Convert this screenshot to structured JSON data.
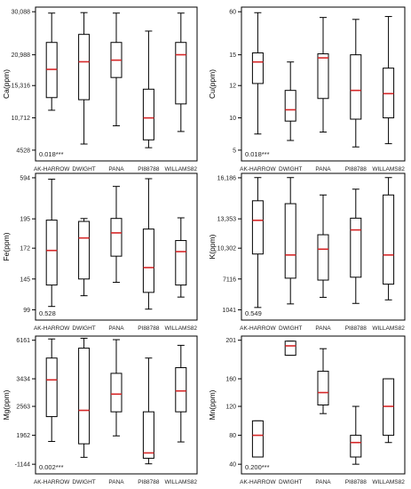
{
  "chart_data": [
    {
      "type": "box",
      "ylabel": "Ca(ppm)",
      "ylim": [
        4528,
        30088
      ],
      "yticks": [
        "30,088",
        "20,988",
        "15,316",
        "10,712",
        "4528"
      ],
      "ytick_values": [
        30088,
        20988,
        15316,
        10712,
        4528
      ],
      "categories": [
        "AK-HARROW",
        "DWIGHT",
        "PANA",
        "PI88788",
        "WILLAMS82"
      ],
      "boxes": [
        {
          "whisker_low": 11800,
          "q1": 13600,
          "median": 18300,
          "q3": 23600,
          "whisker_high": 29800
        },
        {
          "whisker_low": 5700,
          "q1": 13300,
          "median": 19700,
          "q3": 25300,
          "whisker_high": 29900
        },
        {
          "whisker_low": 9200,
          "q1": 16800,
          "median": 20000,
          "q3": 23600,
          "whisker_high": 29800
        },
        {
          "whisker_low": 5000,
          "q1": 6500,
          "median": 10700,
          "q3": 14800,
          "whisker_high": 26000
        },
        {
          "whisker_low": 8100,
          "q1": 12700,
          "median": 21000,
          "q3": 23600,
          "whisker_high": 29800
        }
      ],
      "annotation": "0.018***"
    },
    {
      "type": "box",
      "ylabel": "Cu(ppm)",
      "ylim": [
        5,
        60
      ],
      "yticks": [
        "60",
        "15",
        "12",
        "10",
        "5"
      ],
      "ytick_values": [
        60,
        15,
        12,
        10,
        5
      ],
      "categories": [
        "AK-HARROW",
        "DWIGHT",
        "PANA",
        "PI88788",
        "WILLAMS82"
      ],
      "boxes": [
        {
          "whisker_low": 7.5,
          "q1": 12.2,
          "median": 14.3,
          "q3": 17,
          "whisker_high": 59
        },
        {
          "whisker_low": 6.5,
          "q1": 9.5,
          "median": 10.5,
          "q3": 11.7,
          "whisker_high": 14.3
        },
        {
          "whisker_low": 7.8,
          "q1": 11.2,
          "median": 14.7,
          "q3": 16,
          "whisker_high": 54
        },
        {
          "whisker_low": 5.5,
          "q1": 9.8,
          "median": 11.7,
          "q3": 15,
          "whisker_high": 52
        },
        {
          "whisker_low": 6,
          "q1": 10,
          "median": 11.5,
          "q3": 13.7,
          "whisker_high": 55
        }
      ],
      "annotation": "0.018***"
    },
    {
      "type": "box",
      "ylabel": "Fe(ppm)",
      "ylim": [
        99,
        594
      ],
      "yticks": [
        "594",
        "195",
        "172",
        "145",
        "99"
      ],
      "ytick_values": [
        594,
        195,
        172,
        145,
        99
      ],
      "categories": [
        "AK-HARROW",
        "DWIGHT",
        "PANA",
        "PI88788",
        "WILLAMS82"
      ],
      "boxes": [
        {
          "whisker_low": 104,
          "q1": 136,
          "median": 170,
          "q3": 194,
          "whisker_high": 580
        },
        {
          "whisker_low": 120,
          "q1": 145,
          "median": 180,
          "q3": 193,
          "whisker_high": 198
        },
        {
          "whisker_low": 140,
          "q1": 165,
          "median": 184,
          "q3": 199,
          "whisker_high": 510
        },
        {
          "whisker_low": 100,
          "q1": 125,
          "median": 155,
          "q3": 187,
          "whisker_high": 585
        },
        {
          "whisker_low": 118,
          "q1": 136,
          "median": 169,
          "q3": 178,
          "whisker_high": 205
        }
      ],
      "annotation": "0.528"
    },
    {
      "type": "box",
      "ylabel": "K(ppm)",
      "ylim": [
        1041,
        16186
      ],
      "yticks": [
        "16,186",
        "13,353",
        "10,302",
        "7116",
        "1041"
      ],
      "ytick_values": [
        16186,
        13353,
        10302,
        7116,
        1041
      ],
      "categories": [
        "AK-HARROW",
        "DWIGHT",
        "PANA",
        "PI88788",
        "WILLAMS82"
      ],
      "boxes": [
        {
          "whisker_low": 1500,
          "q1": 9700,
          "median": 13200,
          "q3": 14600,
          "whisker_high": 16200
        },
        {
          "whisker_low": 2200,
          "q1": 7200,
          "median": 9600,
          "q3": 14400,
          "whisker_high": 16200
        },
        {
          "whisker_low": 3500,
          "q1": 6900,
          "median": 10200,
          "q3": 11700,
          "whisker_high": 15000
        },
        {
          "whisker_low": 2300,
          "q1": 7300,
          "median": 12200,
          "q3": 13400,
          "whisker_high": 15400
        },
        {
          "whisker_low": 3000,
          "q1": 6100,
          "median": 9600,
          "q3": 15000,
          "whisker_high": 16200
        }
      ],
      "annotation": "0.549"
    },
    {
      "type": "box",
      "ylabel": "Mg(ppm)",
      "ylim": [
        -1144,
        6161
      ],
      "yticks": [
        "6161",
        "3434",
        "2563",
        "1962",
        "-1144"
      ],
      "ytick_values": [
        6161,
        3434,
        2563,
        1962,
        -1144
      ],
      "categories": [
        "AK-HARROW",
        "DWIGHT",
        "PANA",
        "PI88788",
        "WILLAMS82"
      ],
      "boxes": [
        {
          "whisker_low": 1300,
          "q1": 2350,
          "median": 3400,
          "q3": 4900,
          "whisker_high": 6250
        },
        {
          "whisker_low": -400,
          "q1": 1050,
          "median": 2480,
          "q3": 5600,
          "whisker_high": 6300
        },
        {
          "whisker_low": 1900,
          "q1": 2450,
          "median": 2950,
          "q3": 3820,
          "whisker_high": 6200
        },
        {
          "whisker_low": -1100,
          "q1": -500,
          "median": 70,
          "q3": 2450,
          "whisker_high": 4900
        },
        {
          "whisker_low": 1250,
          "q1": 2450,
          "median": 3050,
          "q3": 4220,
          "whisker_high": 5800
        }
      ],
      "annotation": "0.002***"
    },
    {
      "type": "box",
      "ylabel": "Mn(ppm)",
      "ylim": [
        40,
        201
      ],
      "yticks": [
        "201",
        "160",
        "120",
        "80",
        "40"
      ],
      "ytick_values": [
        201,
        160,
        120,
        80,
        40
      ],
      "categories": [
        "AK-HARROW",
        "DWIGHT",
        "PANA",
        "PI88788",
        "WILLAMS82"
      ],
      "boxes": [
        {
          "whisker_low": 50,
          "q1": 50,
          "median": 80,
          "q3": 100,
          "whisker_high": 100
        },
        {
          "whisker_low": 185,
          "q1": 185,
          "median": 195,
          "q3": 200,
          "whisker_high": 200
        },
        {
          "whisker_low": 110,
          "q1": 122,
          "median": 140,
          "q3": 168,
          "whisker_high": 192
        },
        {
          "whisker_low": 40,
          "q1": 50,
          "median": 70,
          "q3": 80,
          "whisker_high": 120
        },
        {
          "whisker_low": 70,
          "q1": 80,
          "median": 120,
          "q3": 160,
          "whisker_high": 160
        }
      ],
      "annotation": "0.200***"
    }
  ],
  "colors": {
    "median": "#d62728",
    "box": "#000000",
    "frame": "#000000",
    "background": "#ffffff"
  }
}
